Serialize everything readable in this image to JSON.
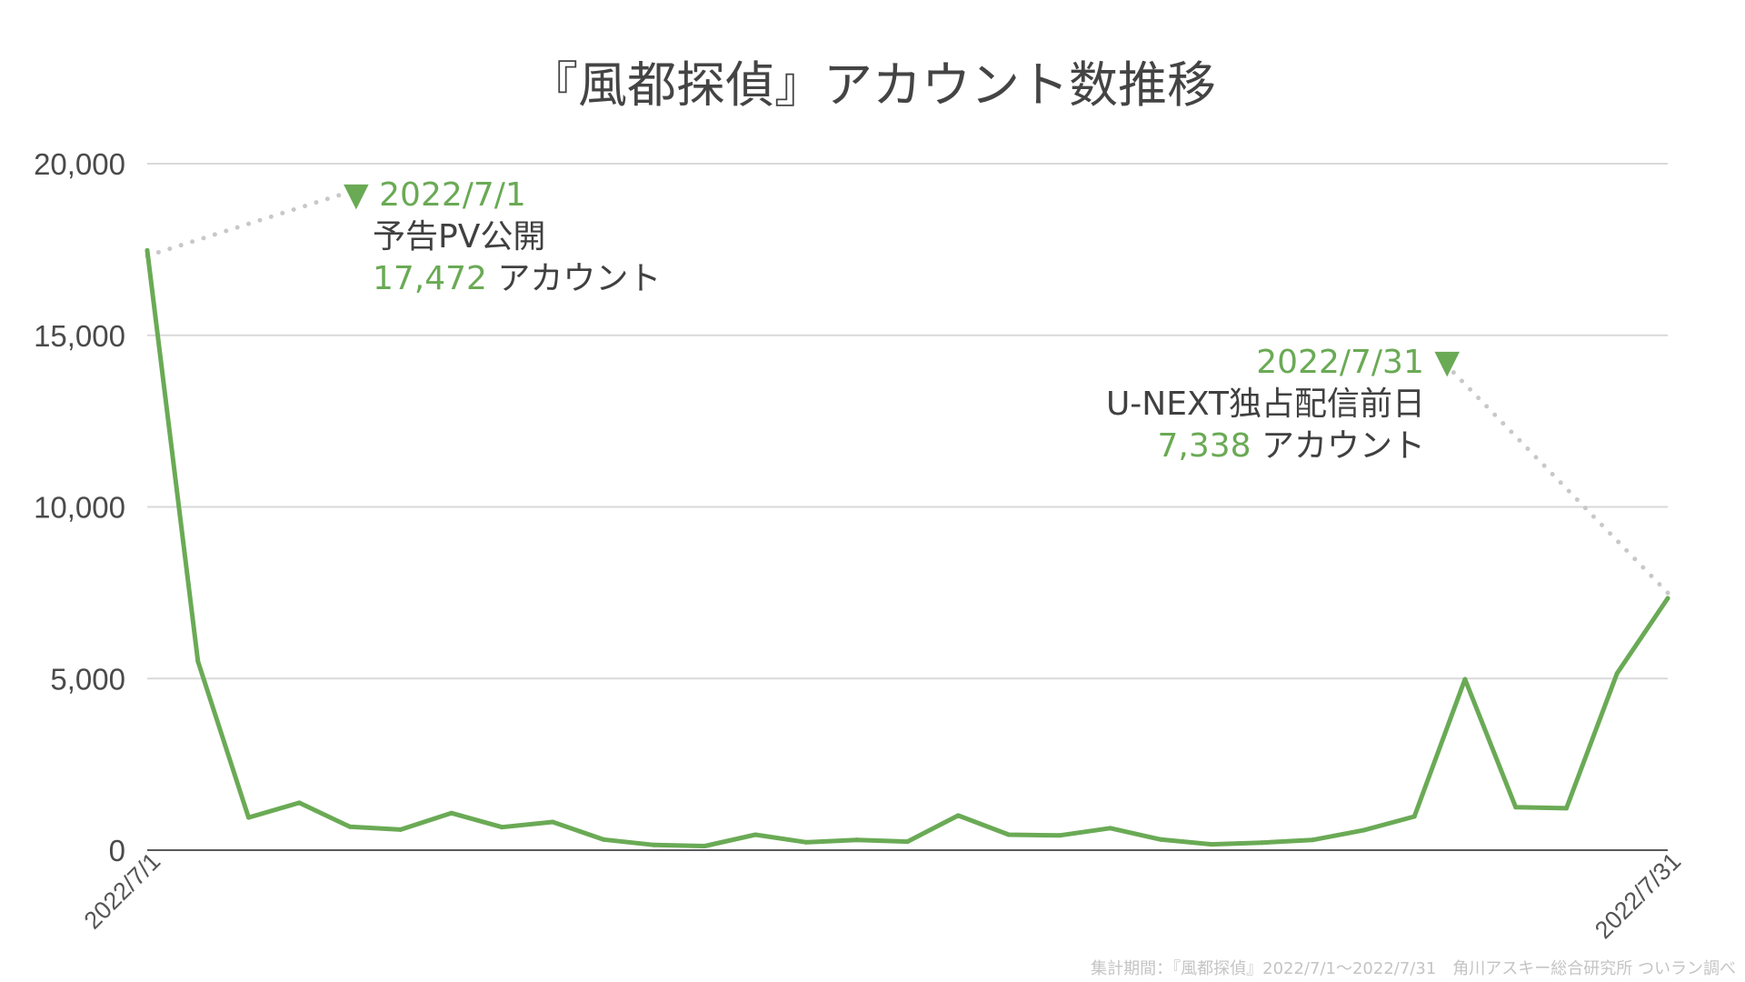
{
  "chart_data": {
    "type": "line",
    "title": "『風都探偵』アカウント数推移",
    "x_tick_labels": [
      "2022/7/1",
      "2022/7/31"
    ],
    "x": [
      "2022/7/1",
      "2022/7/2",
      "2022/7/3",
      "2022/7/4",
      "2022/7/5",
      "2022/7/6",
      "2022/7/7",
      "2022/7/8",
      "2022/7/9",
      "2022/7/10",
      "2022/7/11",
      "2022/7/12",
      "2022/7/13",
      "2022/7/14",
      "2022/7/15",
      "2022/7/16",
      "2022/7/17",
      "2022/7/18",
      "2022/7/19",
      "2022/7/20",
      "2022/7/21",
      "2022/7/22",
      "2022/7/23",
      "2022/7/24",
      "2022/7/25",
      "2022/7/26",
      "2022/7/27",
      "2022/7/28",
      "2022/7/29",
      "2022/7/30",
      "2022/7/31"
    ],
    "series": [
      {
        "color": "#6aaa55",
        "values": [
          17472,
          5500,
          950,
          1380,
          680,
          600,
          1080,
          670,
          820,
          310,
          150,
          120,
          450,
          230,
          300,
          250,
          1010,
          450,
          430,
          640,
          310,
          170,
          220,
          300,
          580,
          980,
          4980,
          1250,
          1220,
          5150,
          7338
        ]
      }
    ],
    "ylim": [
      0,
      20000
    ],
    "y_ticks": [
      {
        "value": 0,
        "label": "0"
      },
      {
        "value": 5000,
        "label": "5,000"
      },
      {
        "value": 10000,
        "label": "10,000"
      },
      {
        "value": 15000,
        "label": "15,000"
      },
      {
        "value": 20000,
        "label": "20,000"
      }
    ],
    "grid": true,
    "annotations": [
      {
        "marker": "▼",
        "date": "2022/7/1",
        "event": "予告PV公開",
        "value": "17,472",
        "unit": "アカウント",
        "point_index": 0
      },
      {
        "marker": "▼",
        "date": "2022/7/31",
        "event": "U-NEXT独占配信前日",
        "value": "7,338",
        "unit": "アカウント",
        "point_index": 30
      }
    ],
    "source_note": "集計期間：『風都探偵』2022/7/1〜2022/7/31　角川アスキー総合研究所 ついラン調べ",
    "colors": {
      "line": "#6aaa55",
      "grid": "#d9d9d9",
      "axis": "#595959",
      "leader": "#c8c8c8"
    }
  }
}
